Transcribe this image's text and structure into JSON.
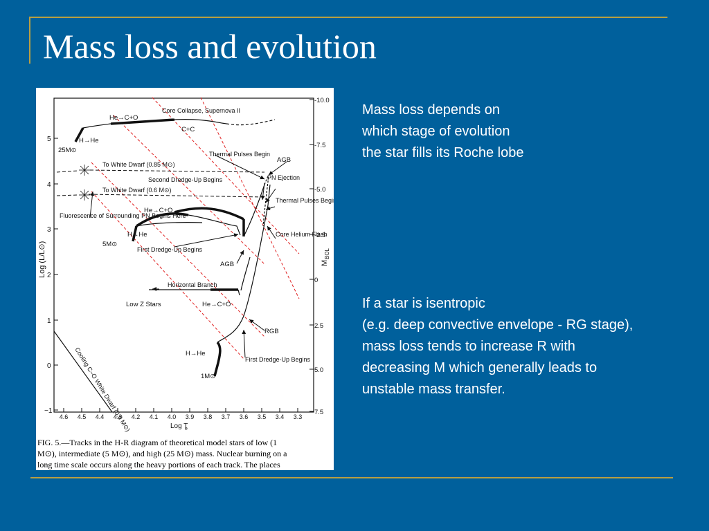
{
  "slide": {
    "title": "Mass loss and evolution",
    "colors": {
      "background": "#00609c",
      "rule": "#b8a040",
      "guide_lines": "#e02020"
    }
  },
  "figure": {
    "icons": [
      "starburst-icon",
      "arrow-icon"
    ],
    "y_axis_label": "Log (L/L⊙)",
    "y_ticks": [
      "5",
      "4",
      "3",
      "2",
      "1",
      "0",
      "−1"
    ],
    "right_axis_label": "M",
    "right_axis_subscript": "BOL",
    "right_ticks": [
      "-10.0",
      "-7.5",
      "-5.0",
      "-2.5",
      "0",
      "2.5",
      "5.0",
      "7.5"
    ],
    "x_axis_label": "Log T",
    "x_axis_subscript": "e",
    "x_ticks": [
      "4.6",
      "4.5",
      "4.4",
      "4.3",
      "4.2",
      "4.1",
      "4.0",
      "3.9",
      "3.8",
      "3.7",
      "3.6",
      "3.5",
      "3.4",
      "3.3"
    ],
    "labels": {
      "he_co_top": "He→C+O",
      "core_collapse": "Core Collapse, Supernova II",
      "cc": "C+C",
      "h_he_top": "H→He",
      "m25": "25M⊙",
      "thermal_pulses_begin_1": "Thermal Pulses Begin",
      "agb_top": "AGB",
      "to_wd_085": "To White Dwarf (0.85 M⊙)",
      "second_dredge": "Second Dredge-Up Begins",
      "pn_ejection": "PN Ejection",
      "to_wd_06": "To White Dwarf (0.6 M⊙)",
      "thermal_pulses_begin_2": "Thermal Pulses Begin",
      "he_co_mid": "He→C+O",
      "fluorescence": "Fluorescence of Surrounding PN Begins Here",
      "h_he_mid": "H→He",
      "m5": "5M⊙",
      "first_dredge_5": "First Dredge-Up Begins",
      "core_helium_flash": "Core Helium Flash",
      "agb_mid": "AGB",
      "horizontal_branch": "Horizontal Branch",
      "low_z": "Low Z Stars",
      "he_co_low": "He→C+O",
      "rgb": "RGB",
      "h_he_low": "H→He",
      "m1": "1M⊙",
      "first_dredge_1": "First Dredge-Up Begins",
      "cooling_wd": "Cooling C–O White Dwarf (0.6 M⊙)"
    },
    "caption": [
      "FIG. 5.—Tracks in the H-R diagram of theoretical model stars of low (1",
      "M⊙), intermediate (5 M⊙), and high (25 M⊙) mass. Nuclear burning on a",
      "long time scale occurs along the heavy portions of each track. The places"
    ]
  },
  "text": {
    "block1": [
      "Mass loss depends on",
      "which stage of evolution",
      "the star fills its Roche lobe"
    ],
    "block2": [
      "If a star is isentropic",
      "(e.g. deep convective envelope - RG stage),",
      "mass loss tends to increase R with",
      "decreasing M which generally leads to",
      "unstable mass transfer."
    ]
  }
}
